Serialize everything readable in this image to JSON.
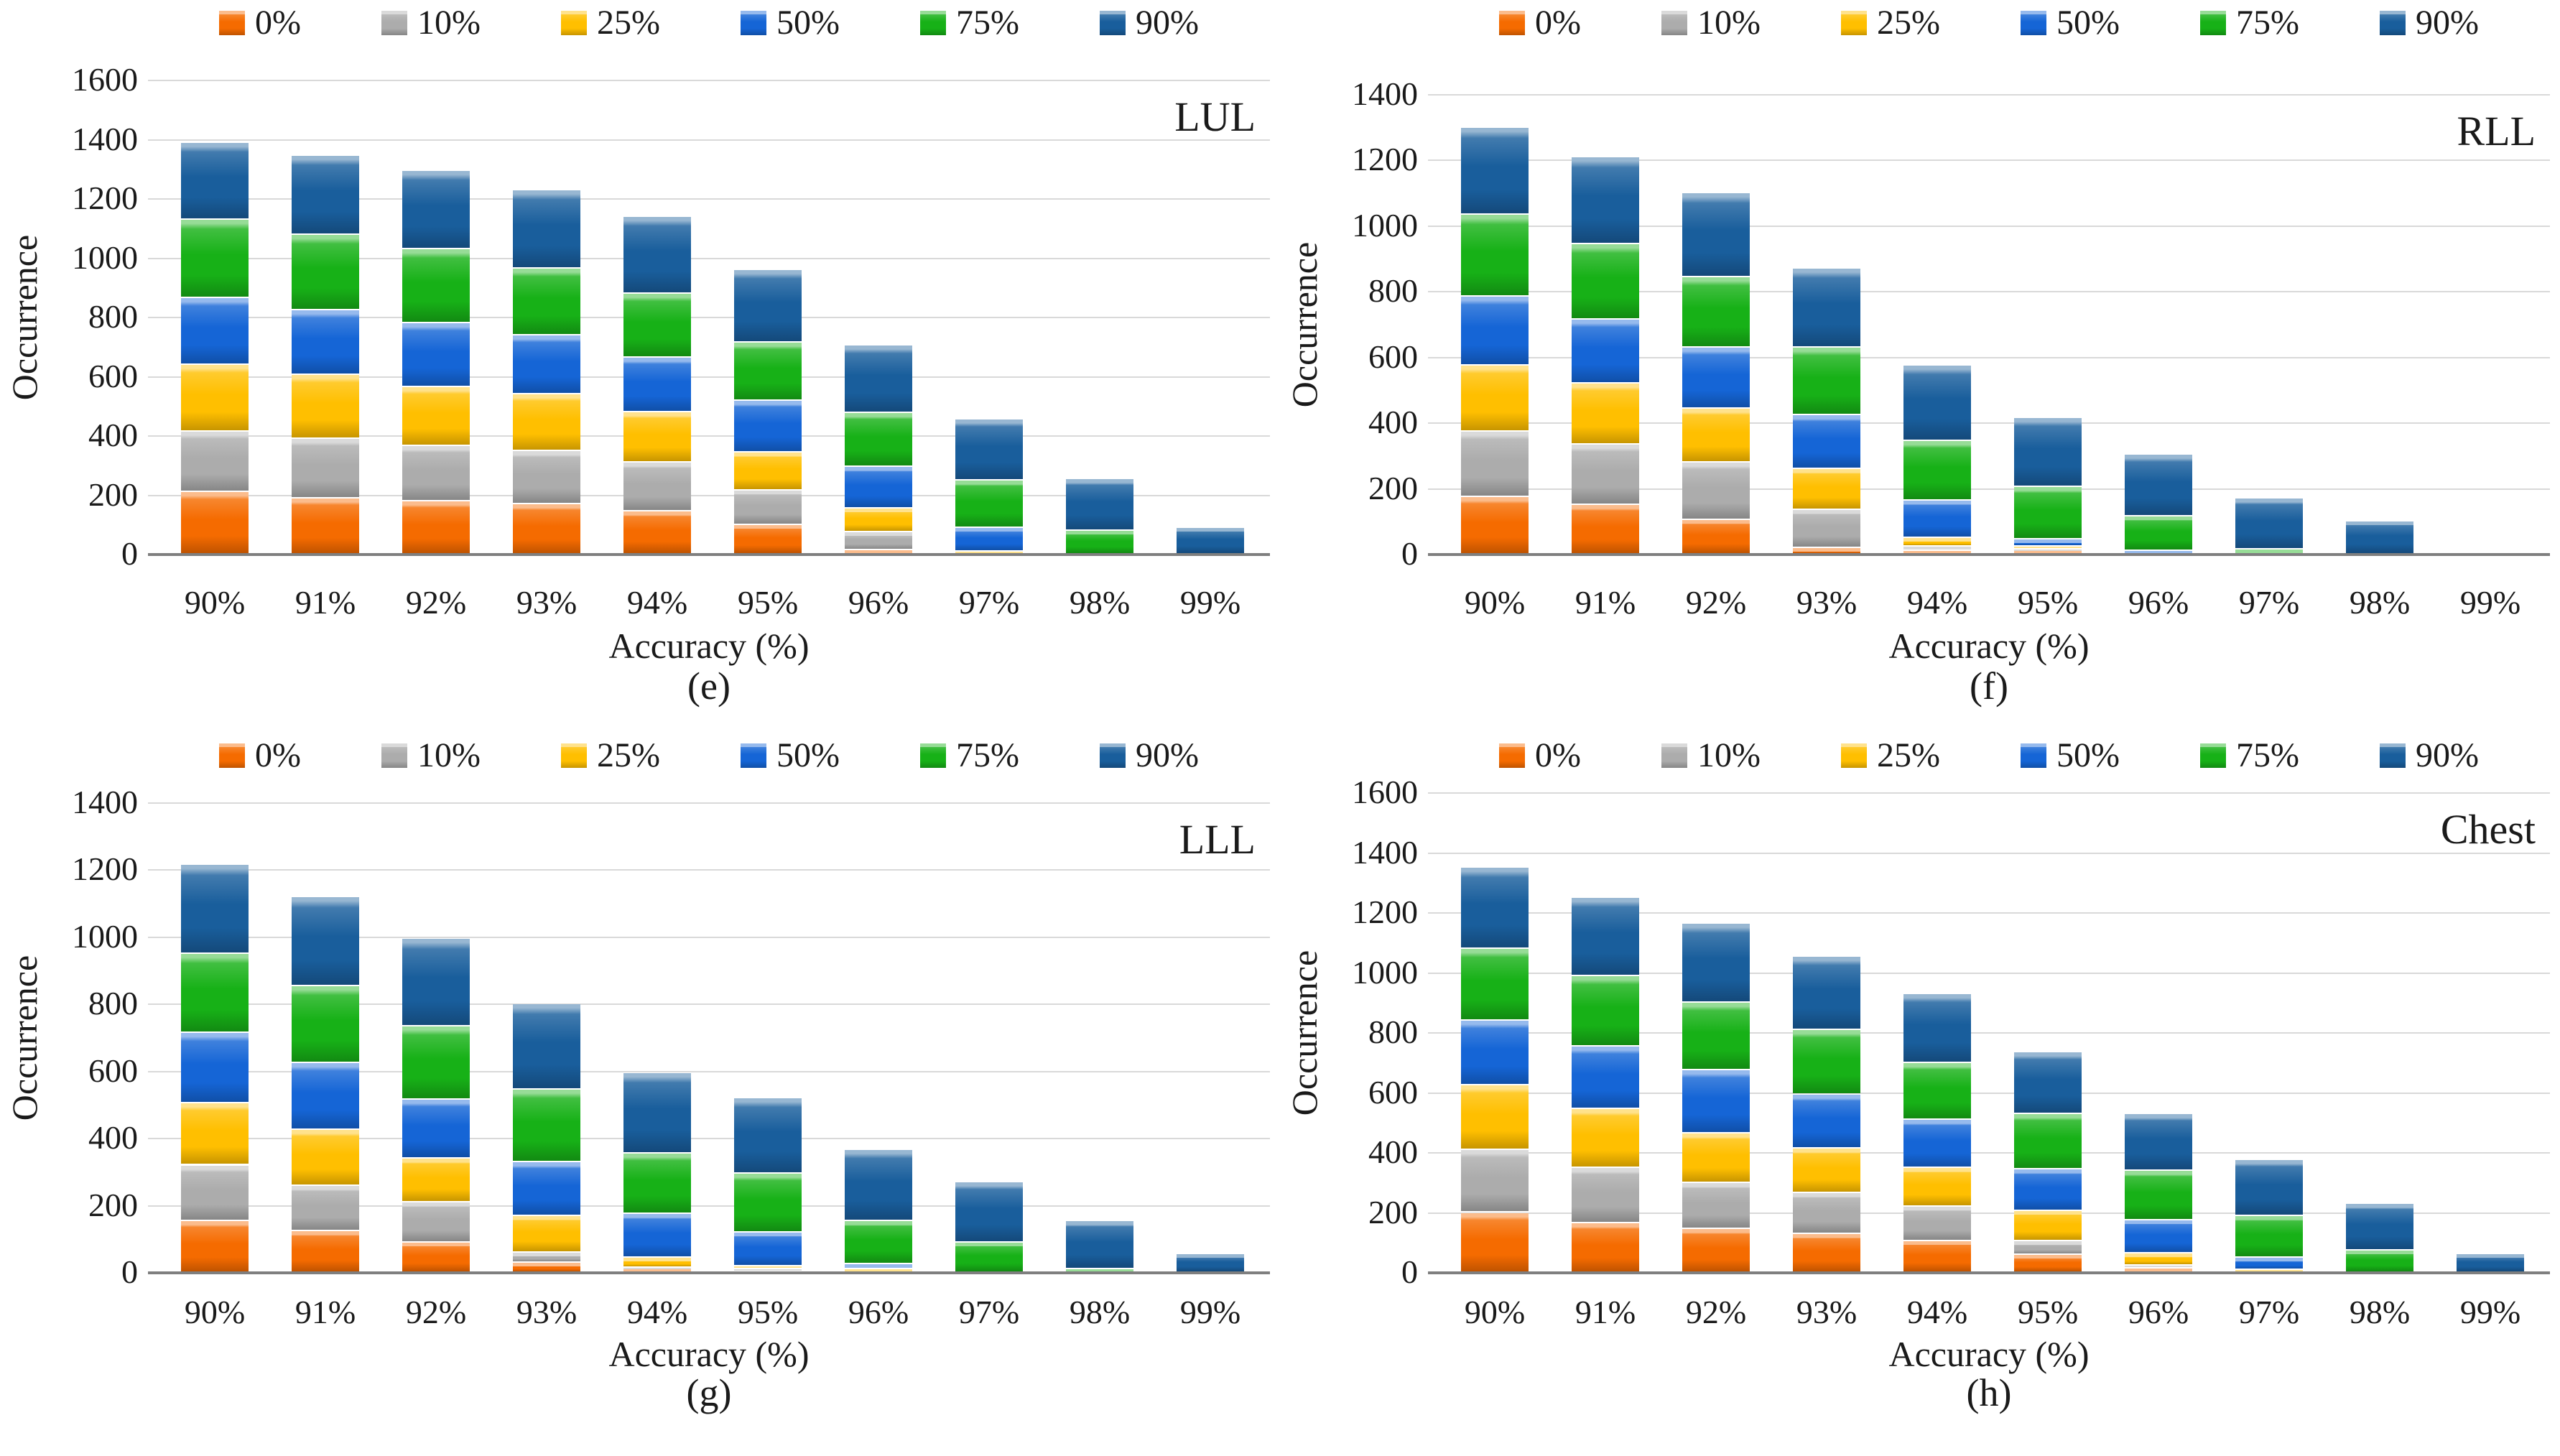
{
  "figure": {
    "ylabel": "Occurrence",
    "xlabel": "Accuracy (%)",
    "legend_labels": [
      "0%",
      "10%",
      "25%",
      "50%",
      "75%",
      "90%"
    ],
    "series_colors": {
      "0%": "#F56B00",
      "10%": "#ACACAC",
      "25%": "#FFBF00",
      "50%": "#1565D6",
      "75%": "#17B117",
      "90%": "#195E9C"
    },
    "gridline_color": "#d9d9d9",
    "axis_color": "#7f7f7f"
  },
  "chart_data": [
    {
      "type": "bar",
      "stacked": true,
      "panel_letter": "(e)",
      "title": "LUL",
      "xlabel": "Accuracy (%)",
      "ylabel": "Occurrence",
      "ylim": [
        0,
        1600
      ],
      "ytick_step": 200,
      "grid": true,
      "legend_position": "top",
      "categories": [
        "90%",
        "91%",
        "92%",
        "93%",
        "94%",
        "95%",
        "96%",
        "97%",
        "98%",
        "99%"
      ],
      "series": [
        {
          "name": "0%",
          "color": "#F56B00",
          "values": [
            210,
            190,
            180,
            170,
            145,
            100,
            15,
            0,
            0,
            0
          ]
        },
        {
          "name": "10%",
          "color": "#ACACAC",
          "values": [
            205,
            200,
            185,
            180,
            165,
            115,
            60,
            0,
            0,
            0
          ]
        },
        {
          "name": "25%",
          "color": "#FFBF00",
          "values": [
            225,
            215,
            200,
            190,
            170,
            130,
            80,
            10,
            0,
            0
          ]
        },
        {
          "name": "50%",
          "color": "#1565D6",
          "values": [
            225,
            220,
            215,
            200,
            185,
            175,
            140,
            80,
            0,
            0
          ]
        },
        {
          "name": "75%",
          "color": "#17B117",
          "values": [
            265,
            255,
            250,
            225,
            215,
            195,
            183,
            160,
            80,
            0
          ]
        },
        {
          "name": "90%",
          "color": "#195E9C",
          "values": [
            260,
            265,
            265,
            265,
            260,
            245,
            227,
            205,
            175,
            90
          ]
        }
      ],
      "totals": [
        1390,
        1345,
        1295,
        1230,
        1140,
        960,
        705,
        455,
        255,
        90
      ]
    },
    {
      "type": "bar",
      "stacked": true,
      "panel_letter": "(f)",
      "title": "RLL",
      "xlabel": "Accuracy (%)",
      "ylabel": "Occurrence",
      "ylim": [
        0,
        1400
      ],
      "ytick_step": 200,
      "grid": true,
      "legend_position": "top",
      "categories": [
        "90%",
        "91%",
        "92%",
        "93%",
        "94%",
        "95%",
        "96%",
        "97%",
        "98%",
        "99%"
      ],
      "series": [
        {
          "name": "0%",
          "color": "#F56B00",
          "values": [
            175,
            150,
            105,
            20,
            10,
            10,
            0,
            0,
            0,
            0
          ]
        },
        {
          "name": "10%",
          "color": "#ACACAC",
          "values": [
            200,
            185,
            175,
            115,
            15,
            5,
            0,
            0,
            0,
            0
          ]
        },
        {
          "name": "25%",
          "color": "#FFBF00",
          "values": [
            200,
            185,
            165,
            125,
            25,
            10,
            0,
            0,
            0,
            0
          ]
        },
        {
          "name": "50%",
          "color": "#1565D6",
          "values": [
            210,
            195,
            185,
            165,
            115,
            20,
            10,
            0,
            0,
            0
          ]
        },
        {
          "name": "75%",
          "color": "#17B117",
          "values": [
            250,
            230,
            215,
            205,
            180,
            160,
            105,
            15,
            0,
            0
          ]
        },
        {
          "name": "90%",
          "color": "#195E9C",
          "values": [
            265,
            265,
            255,
            240,
            230,
            210,
            190,
            155,
            100,
            5
          ]
        }
      ],
      "totals": [
        1300,
        1210,
        1100,
        870,
        575,
        415,
        305,
        170,
        100,
        5
      ]
    },
    {
      "type": "bar",
      "stacked": true,
      "panel_letter": "(g)",
      "title": "LLL",
      "xlabel": "Accuracy (%)",
      "ylabel": "Occurrence",
      "ylim": [
        0,
        1400
      ],
      "ytick_step": 200,
      "grid": true,
      "legend_position": "top",
      "categories": [
        "90%",
        "91%",
        "92%",
        "93%",
        "94%",
        "95%",
        "96%",
        "97%",
        "98%",
        "99%"
      ],
      "series": [
        {
          "name": "0%",
          "color": "#F56B00",
          "values": [
            155,
            125,
            90,
            30,
            10,
            5,
            0,
            0,
            0,
            0
          ]
        },
        {
          "name": "10%",
          "color": "#ACACAC",
          "values": [
            165,
            135,
            120,
            30,
            5,
            5,
            0,
            0,
            0,
            0
          ]
        },
        {
          "name": "25%",
          "color": "#FFBF00",
          "values": [
            185,
            165,
            130,
            110,
            30,
            10,
            10,
            0,
            0,
            0
          ]
        },
        {
          "name": "50%",
          "color": "#1565D6",
          "values": [
            210,
            200,
            175,
            160,
            130,
            100,
            15,
            0,
            0,
            0
          ]
        },
        {
          "name": "75%",
          "color": "#17B117",
          "values": [
            235,
            230,
            220,
            215,
            180,
            175,
            130,
            90,
            10,
            0
          ]
        },
        {
          "name": "90%",
          "color": "#195E9C",
          "values": [
            265,
            265,
            260,
            255,
            240,
            225,
            210,
            180,
            145,
            55
          ]
        }
      ],
      "totals": [
        1215,
        1120,
        995,
        800,
        595,
        520,
        365,
        270,
        155,
        55
      ]
    },
    {
      "type": "bar",
      "stacked": true,
      "panel_letter": "(h)",
      "title": "Chest",
      "xlabel": "Accuracy (%)",
      "ylabel": "Occurrence",
      "ylim": [
        0,
        1600
      ],
      "ytick_step": 200,
      "grid": true,
      "legend_position": "top",
      "categories": [
        "90%",
        "91%",
        "92%",
        "93%",
        "94%",
        "95%",
        "96%",
        "97%",
        "98%",
        "99%"
      ],
      "series": [
        {
          "name": "0%",
          "color": "#F56B00",
          "values": [
            200,
            165,
            145,
            130,
            105,
            60,
            15,
            0,
            0,
            0
          ]
        },
        {
          "name": "10%",
          "color": "#ACACAC",
          "values": [
            210,
            185,
            155,
            135,
            115,
            45,
            10,
            0,
            0,
            0
          ]
        },
        {
          "name": "25%",
          "color": "#FFBF00",
          "values": [
            215,
            195,
            165,
            150,
            130,
            100,
            40,
            10,
            0,
            0
          ]
        },
        {
          "name": "50%",
          "color": "#1565D6",
          "values": [
            215,
            210,
            210,
            180,
            160,
            140,
            110,
            40,
            0,
            0
          ]
        },
        {
          "name": "75%",
          "color": "#17B117",
          "values": [
            240,
            235,
            225,
            215,
            190,
            185,
            165,
            140,
            75,
            0
          ]
        },
        {
          "name": "90%",
          "color": "#195E9C",
          "values": [
            270,
            260,
            265,
            245,
            230,
            205,
            190,
            185,
            155,
            62
          ]
        }
      ],
      "totals": [
        1350,
        1250,
        1165,
        1055,
        930,
        735,
        530,
        375,
        230,
        62
      ]
    }
  ]
}
